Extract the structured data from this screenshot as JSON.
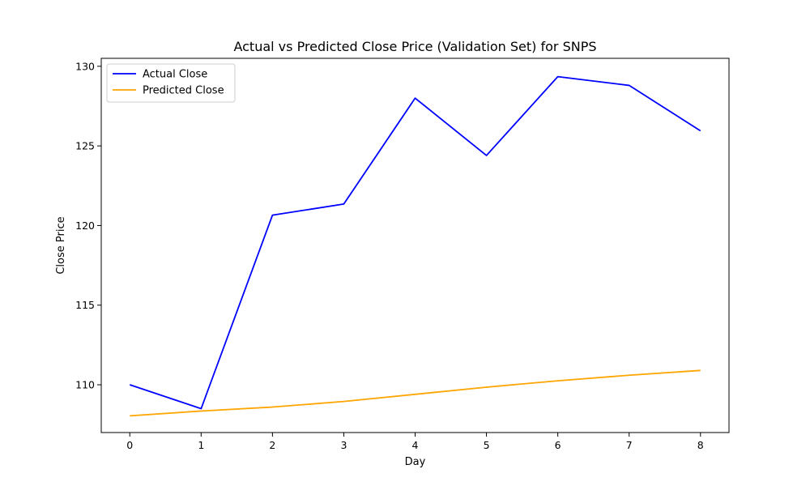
{
  "chart_data": {
    "type": "line",
    "title": "Actual vs Predicted Close Price (Validation Set) for SNPS",
    "xlabel": "Day",
    "ylabel": "Close Price",
    "x": [
      0,
      1,
      2,
      3,
      4,
      5,
      6,
      7,
      8
    ],
    "xlim": [
      -0.4,
      8.4
    ],
    "ylim": [
      107.0,
      130.5
    ],
    "xticks": [
      0,
      1,
      2,
      3,
      4,
      5,
      6,
      7,
      8
    ],
    "yticks": [
      110,
      115,
      120,
      125,
      130
    ],
    "grid": false,
    "legend": "upper-left",
    "series": [
      {
        "name": "Actual Close",
        "color": "#0000ff",
        "values": [
          110.0,
          108.5,
          120.65,
          121.35,
          128.0,
          124.4,
          129.35,
          128.8,
          125.95
        ]
      },
      {
        "name": "Predicted Close",
        "color": "#ffa500",
        "values": [
          108.05,
          108.35,
          108.6,
          108.95,
          109.4,
          109.85,
          110.25,
          110.6,
          110.9
        ]
      }
    ]
  }
}
